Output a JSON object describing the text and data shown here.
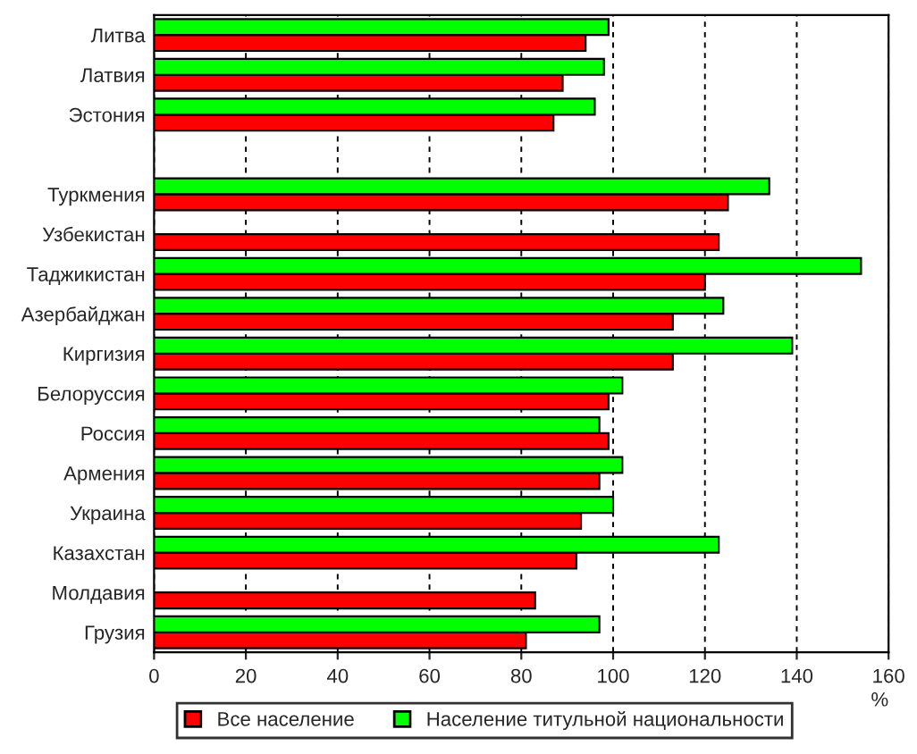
{
  "chart_data": {
    "type": "bar",
    "orientation": "horizontal",
    "xlabel": "%",
    "categories": [
      "Литва",
      "Латвия",
      "Эстония",
      null,
      "Туркмения",
      "Узбекистан",
      "Таджикистан",
      "Азербайджан",
      "Киргизия",
      "Белоруссия",
      "Россия",
      "Армения",
      "Украина",
      "Казахстан",
      "Молдавия",
      "Грузия"
    ],
    "series": [
      {
        "name": "Все население",
        "color": "#ff0000",
        "values": [
          94,
          89,
          87,
          null,
          125,
          123,
          120,
          113,
          113,
          99,
          99,
          97,
          93,
          92,
          83,
          81
        ]
      },
      {
        "name": "Население титульной национальности",
        "color": "#00ff00",
        "values": [
          99,
          98,
          96,
          null,
          134,
          null,
          154,
          124,
          139,
          102,
          97,
          102,
          100,
          123,
          null,
          97
        ]
      }
    ],
    "xlim": [
      0,
      160
    ],
    "xticks": [
      0,
      20,
      40,
      60,
      80,
      100,
      120,
      140,
      160
    ],
    "grid": "x",
    "legend": "bottom"
  }
}
